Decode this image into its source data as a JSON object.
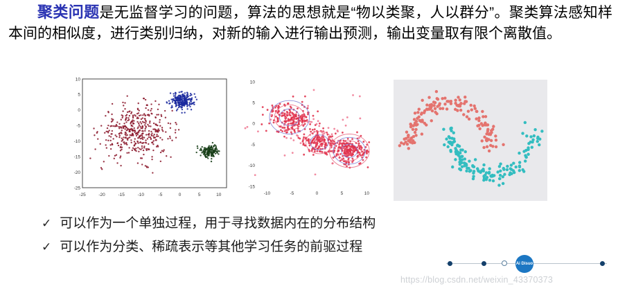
{
  "intro": {
    "term": "聚类问题",
    "rest": "是无监督学习的问题，算法的思想就是“物以类聚，人以群分”。聚类算法感知样本间的相似度，进行类别归纳，对新的输入进行输出预测，输出变量取有限个离散值。",
    "accent_color": "#2a33b3"
  },
  "bullets": [
    {
      "icon": "✓",
      "text": "可以作为一个单独过程，用于寻找数据内在的分布结构"
    },
    {
      "icon": "✓",
      "text": "可以作为分类、稀疏表示等其他学习任务的前驱过程"
    }
  ],
  "footer": {
    "badge_label": "Ai Disuo",
    "watermark": "https://blog.csdn.net/weixin_43370373"
  },
  "chart_data": [
    {
      "type": "scatter",
      "title": "",
      "xlabel": "",
      "ylabel": "",
      "xlim": [
        -25,
        12
      ],
      "ylim": [
        -25,
        10
      ],
      "xticks": [
        -25,
        -20,
        -15,
        -10,
        -5,
        0,
        5,
        10
      ],
      "yticks": [
        10,
        5,
        0,
        -5,
        -10,
        -15,
        -20,
        -25
      ],
      "frame": true,
      "grid": false,
      "background": "#ffffff",
      "point_radius": 1.2,
      "clusters": [
        {
          "name": "maroon-cluster",
          "color": "#8c1a2e",
          "center": [
            -11,
            -7
          ],
          "std": [
            4.6,
            4.2
          ],
          "n": 430
        },
        {
          "name": "navy-cluster",
          "color": "#1b2a9e",
          "center": [
            0.5,
            3
          ],
          "std": [
            1.5,
            1.3
          ],
          "n": 240
        },
        {
          "name": "dark-green-cluster",
          "color": "#173d17",
          "center": [
            7.8,
            -13.2
          ],
          "std": [
            1.1,
            1.0
          ],
          "n": 150
        }
      ]
    },
    {
      "type": "scatter",
      "title": "",
      "xlabel": "",
      "ylabel": "",
      "xlim": [
        -12,
        13
      ],
      "ylim": [
        -15,
        10
      ],
      "xticks": [
        -10,
        -5,
        0,
        5,
        10
      ],
      "yticks": [
        10,
        5,
        0,
        -5,
        -10,
        -15
      ],
      "frame": false,
      "grid": false,
      "background": "#ffffff",
      "point_radius": 1.4,
      "ring_colors": [
        "#e8637d",
        "#7b7bd4"
      ],
      "clusters": [
        {
          "name": "red-cluster-a",
          "color": "#e0314b",
          "center": [
            -5.5,
            1.5
          ],
          "std": [
            2.2,
            2.0
          ],
          "n": 200,
          "rings": [
            1.0,
            2.0,
            3.0,
            4.0
          ]
        },
        {
          "name": "red-cluster-b",
          "color": "#e0314b",
          "center": [
            0.5,
            -4.5
          ],
          "std": [
            1.7,
            1.5
          ],
          "n": 150,
          "rings": [
            0.9,
            1.8,
            2.7
          ]
        },
        {
          "name": "red-cluster-c",
          "color": "#e0314b",
          "center": [
            6.5,
            -6.5
          ],
          "std": [
            1.7,
            1.4
          ],
          "n": 210,
          "rings": [
            0.8,
            1.6,
            2.4,
            3.2,
            4.0
          ]
        },
        {
          "name": "outlier-points",
          "color": "#ef7a93",
          "center": [
            0,
            -2.5
          ],
          "std": [
            5.5,
            4.5
          ],
          "n": 55
        }
      ]
    },
    {
      "type": "moons",
      "title": "",
      "xlabel": "",
      "ylabel": "",
      "xlim": [
        -1.35,
        2.35
      ],
      "ylim": [
        -1.05,
        1.5
      ],
      "frame": false,
      "grid": false,
      "background": "#e9e9ec",
      "point_radius": 2.2,
      "moons": [
        {
          "name": "upper-moon",
          "color": "#e4736e",
          "n": 160,
          "noise": 0.1
        },
        {
          "name": "lower-moon",
          "color": "#33bdc0",
          "n": 160,
          "noise": 0.1
        }
      ]
    }
  ]
}
